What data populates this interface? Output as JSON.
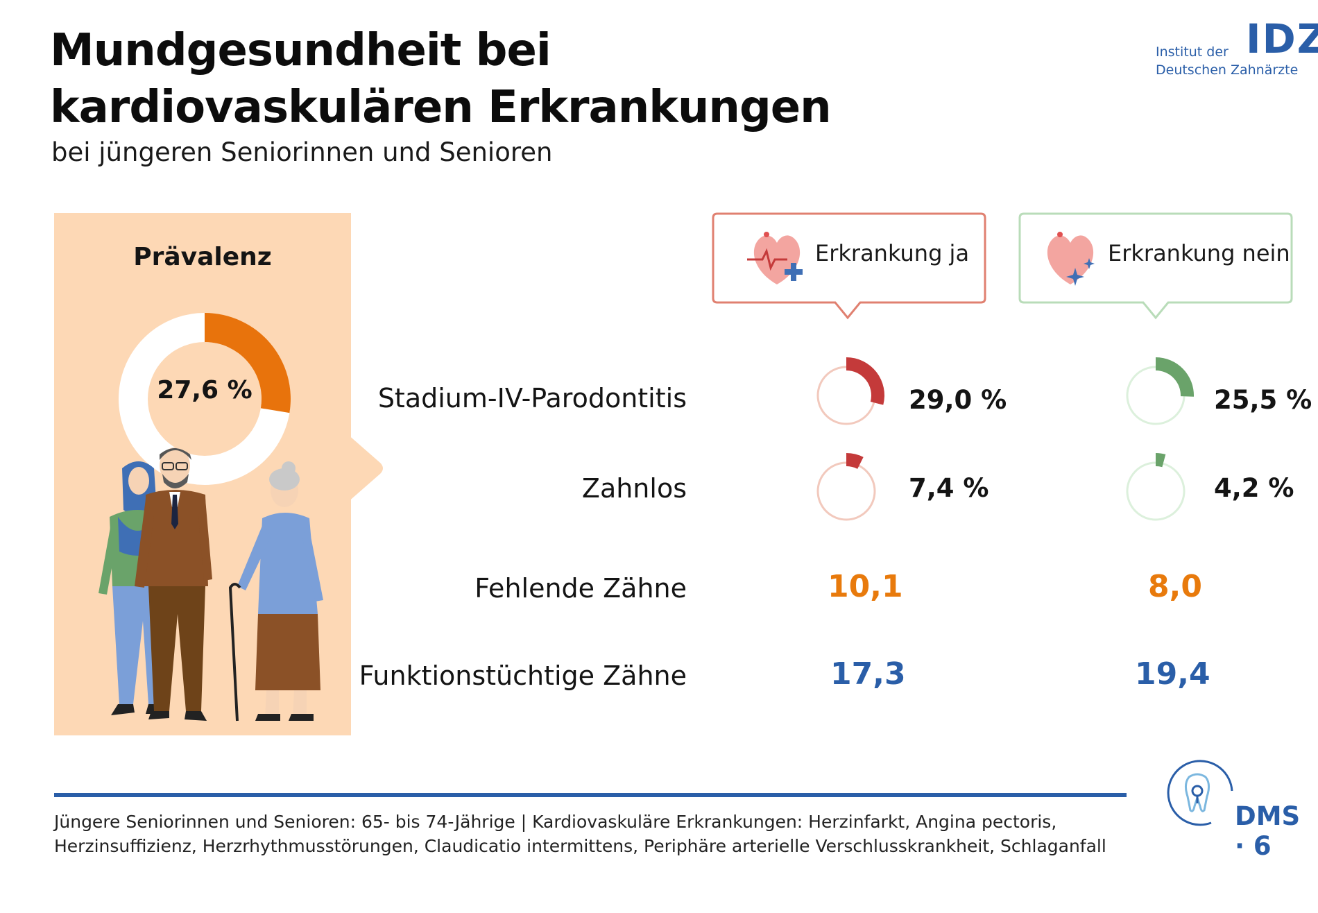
{
  "header": {
    "title_line1": "Mundgesundheit bei",
    "title_line2": "kardiovaskulären Erkrankungen",
    "subtitle": "bei jüngeren Seniorinnen und Senioren"
  },
  "logo": {
    "line1": "Institut der",
    "line2": "Deutschen Zahnärzte",
    "letters": "IDZ",
    "color_blue": "#2a5ea8",
    "color_orange": "#e87a0c"
  },
  "prevalence": {
    "title": "Prävalenz",
    "value_label": "27,6 %",
    "value": 27.6
  },
  "groups": [
    {
      "label": "Erkrankung ja",
      "color": "#c43a3a",
      "light": "#f2c9bd",
      "border": "#e08070"
    },
    {
      "label": "Erkrankung nein",
      "color": "#6aa36a",
      "light": "#dcf0dc",
      "border": "#b9dcb9"
    }
  ],
  "rows": {
    "stadium": "Stadium-IV-Parodontitis",
    "zahnlos": "Zahnlos",
    "fehlend": "Fehlende Zähne",
    "funktion": "Funktionstüchtige Zähne"
  },
  "chart_data": {
    "type": "table",
    "groups": [
      "Erkrankung ja",
      "Erkrankung nein"
    ],
    "metrics": [
      {
        "name": "Stadium-IV-Parodontitis",
        "unit": "%",
        "values": [
          29.0,
          25.5
        ],
        "labels": [
          "29,0 %",
          "25,5 %"
        ]
      },
      {
        "name": "Zahnlos",
        "unit": "%",
        "values": [
          7.4,
          4.2
        ],
        "labels": [
          "7,4 %",
          "4,2 %"
        ]
      },
      {
        "name": "Fehlende Zähne",
        "values": [
          10.1,
          8.0
        ],
        "labels": [
          "10,1",
          "8,0"
        ]
      },
      {
        "name": "Funktionstüchtige Zähne",
        "values": [
          17.3,
          19.4
        ],
        "labels": [
          "17,3",
          "19,4"
        ]
      }
    ],
    "prevalence": {
      "label": "Prävalenz",
      "value": 27.6,
      "value_label": "27,6 %"
    }
  },
  "footer": {
    "line1": "Jüngere Seniorinnen und Senioren: 65- bis 74-Jährige | Kardiovaskuläre Erkrankungen: Herzinfarkt, Angina pectoris,",
    "line2": "Herzinsuffizienz, Herzrhythmusstörungen, Claudicatio intermittens, Periphäre arterielle Verschlusskrankheit, Schlaganfall",
    "dms_label": "DMS · 6"
  }
}
